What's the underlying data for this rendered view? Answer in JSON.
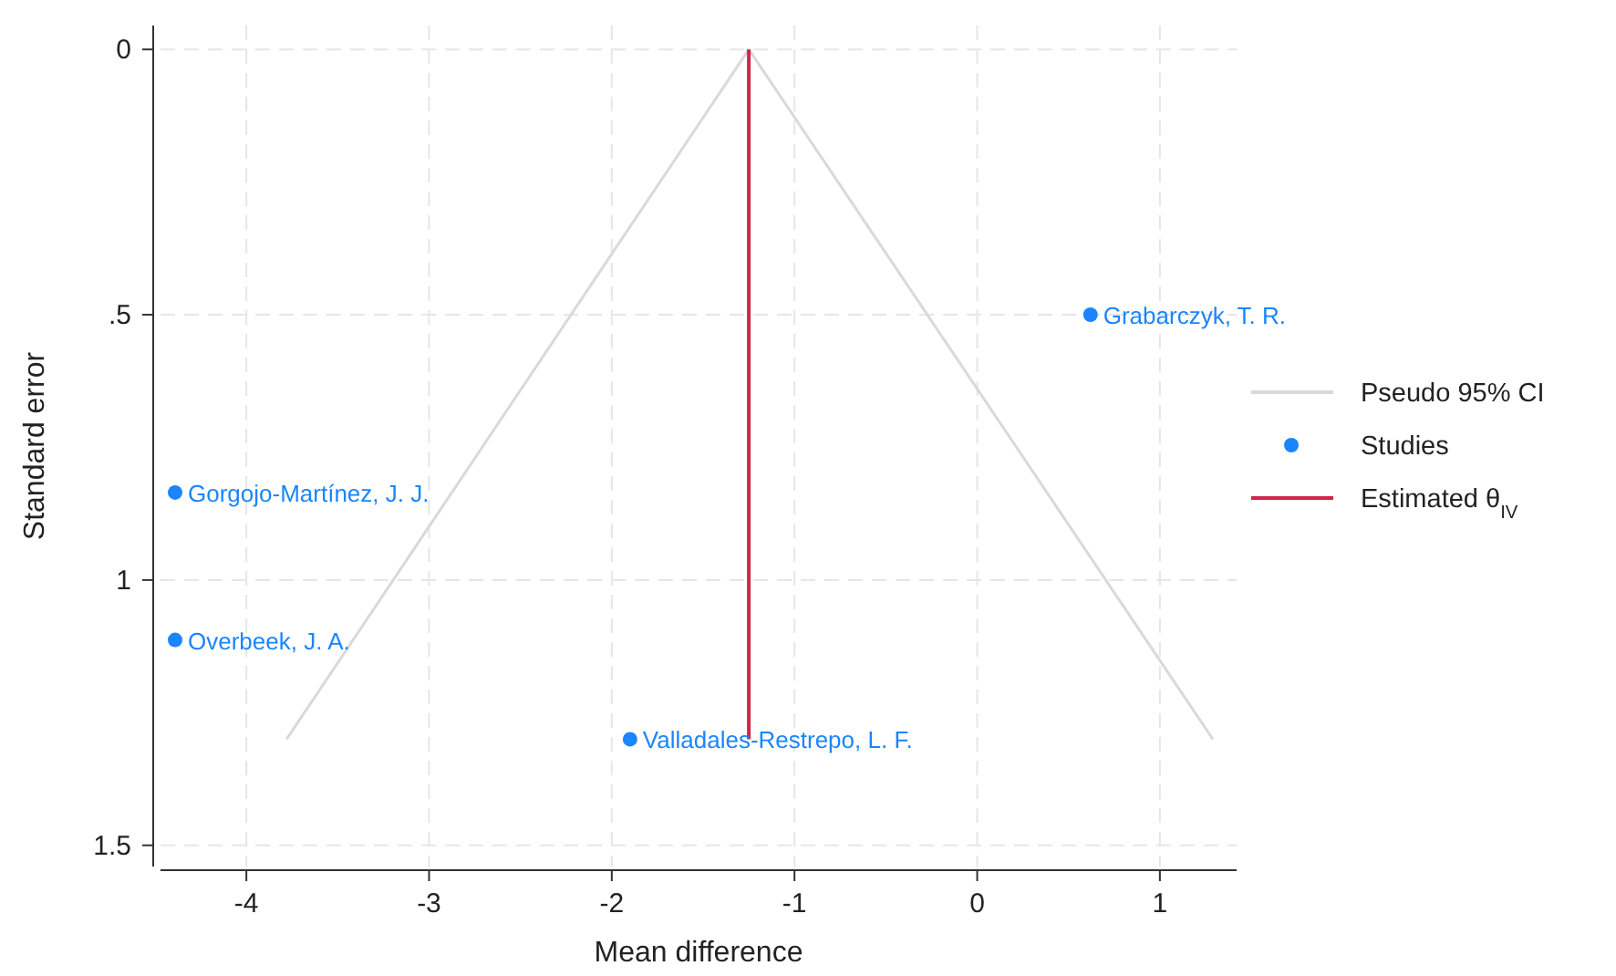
{
  "chart_data": {
    "type": "scatter",
    "xlabel": "Mean difference",
    "ylabel": "Standard error",
    "xlim": [
      -4.47,
      1.42
    ],
    "xticks": [
      -4,
      -3,
      -2,
      -1,
      0,
      1
    ],
    "ylim": [
      1.54,
      -0.045
    ],
    "yticks": [
      0,
      {
        "value": 0.5,
        "label": ".5"
      },
      1,
      1.5
    ],
    "grid": true,
    "legend": "right",
    "series": [
      {
        "name": "Pseudo 95% CI",
        "type": "line",
        "color": "#d9d9d9",
        "x": [
          -3.78,
          -1.25,
          1.29
        ],
        "values": [
          1.3,
          0,
          1.3
        ],
        "marker": "none"
      },
      {
        "name": "Studies",
        "color": "#1a85ff",
        "x": [
          0.62,
          -4.39,
          -4.39,
          -1.9
        ],
        "values": [
          0.5,
          0.835,
          1.113,
          1.3
        ],
        "marker": "circle"
      },
      {
        "name": "Estimated θ$_{IV}$",
        "type": "line",
        "color": "#d0254c",
        "x": [
          -1.25,
          -1.25
        ],
        "values": [
          0,
          1.3
        ],
        "marker": "none"
      }
    ],
    "annotations": [
      {
        "text": "Grabarczyk, T. R.",
        "x": 0.62,
        "y": 0.5
      },
      {
        "text": "Gorgojo-Martínez, J. J.",
        "x": -4.39,
        "y": 0.835
      },
      {
        "text": "Overbeek, J. A.",
        "x": -4.39,
        "y": 1.113
      },
      {
        "text": "Valladales-Restrepo, L. F.",
        "x": -1.9,
        "y": 1.3
      }
    ]
  }
}
